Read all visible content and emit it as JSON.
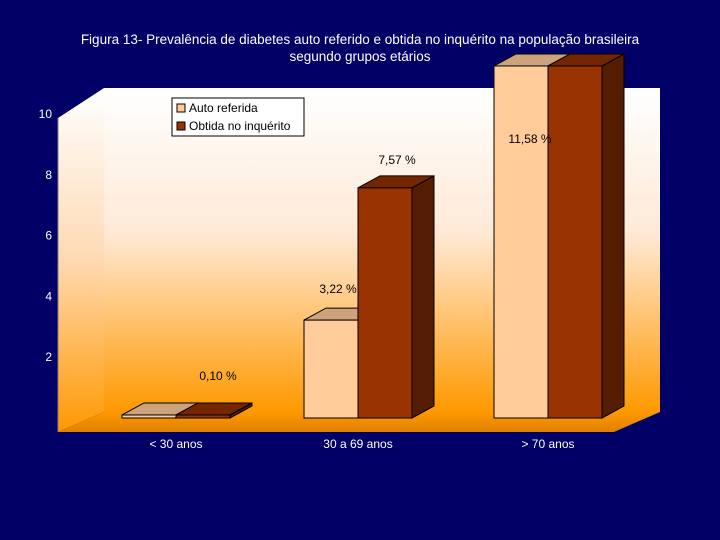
{
  "title": {
    "line1": "Figura 13- Prevalência de diabetes auto referido e obtida no inquérito na população brasileira",
    "line2": "segundo grupos etários"
  },
  "colors": {
    "background": "#000066",
    "series_auto": "#FFCC99",
    "series_obtida": "#993300",
    "plot_top": "#FFFFFF",
    "plot_bottom": "#FF9900"
  },
  "chart_data": {
    "type": "bar",
    "title": "Figura 13- Prevalência de diabetes auto referido e obtida no inquérito na população brasileira segundo grupos etários",
    "categories": [
      "< 30 anos",
      "30 a 69 anos",
      "> 70 anos"
    ],
    "series": [
      {
        "name": "Auto referida",
        "values": [
          0.1,
          3.22,
          11.58
        ]
      },
      {
        "name": "Obtida no inquérito",
        "values": [
          0.1,
          7.57,
          11.58
        ]
      }
    ],
    "data_labels": [
      "0,10 %",
      "3,22 %",
      "7,57 %",
      "11,58 %"
    ],
    "yticks": [
      "2",
      "4",
      "6",
      "8",
      "10"
    ],
    "ylim": [
      0,
      12
    ],
    "grid": false,
    "legend_position": "top-left",
    "style": "3d-column"
  }
}
